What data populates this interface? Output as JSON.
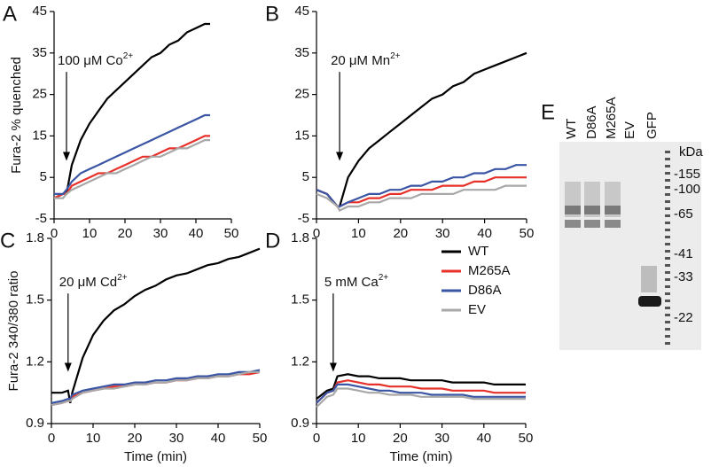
{
  "chart_data": [
    {
      "type": "line",
      "panel": "A",
      "ylabel": "Fura-2 % quenched",
      "annotation": {
        "text": "100 μM Co",
        "superscript": "2+",
        "arrow_x": 3.5
      },
      "xlim": [
        0,
        50
      ],
      "xticks": [
        0,
        10,
        20,
        30,
        40,
        50
      ],
      "ylim": [
        -5,
        45
      ],
      "yticks": [
        -5,
        5,
        15,
        25,
        35,
        45
      ],
      "x": [
        0,
        2.5,
        3.5,
        5,
        7.5,
        10,
        12.5,
        15,
        17.5,
        20,
        22.5,
        25,
        27.5,
        30,
        32.5,
        35,
        37.5,
        40,
        42.5,
        44
      ],
      "series": [
        {
          "name": "WT",
          "color": "#000000",
          "values": [
            0,
            1,
            1,
            8,
            14,
            18,
            21,
            24,
            26,
            28,
            30,
            32,
            34,
            35,
            37,
            38,
            40,
            41,
            42,
            42
          ]
        },
        {
          "name": "M265A",
          "color": "#e8302a",
          "values": [
            0,
            1,
            1,
            3,
            4,
            5,
            6,
            6,
            7,
            8,
            9,
            10,
            10,
            11,
            12,
            12,
            13,
            14,
            15,
            15
          ]
        },
        {
          "name": "D86A",
          "color": "#3a55a4",
          "values": [
            1,
            1,
            2,
            4,
            6,
            7,
            8,
            9,
            10,
            11,
            12,
            13,
            14,
            15,
            16,
            17,
            18,
            19,
            20,
            20
          ]
        },
        {
          "name": "EV",
          "color": "#a8a8a8",
          "values": [
            0,
            0,
            1,
            2,
            3,
            4,
            5,
            6,
            6,
            7,
            8,
            9,
            10,
            10,
            11,
            12,
            12,
            13,
            14,
            14
          ]
        }
      ]
    },
    {
      "type": "line",
      "panel": "B",
      "annotation": {
        "text": "20 μM Mn",
        "superscript": "2+",
        "arrow_x": 5.5
      },
      "xlim": [
        0,
        50
      ],
      "xticks": [
        0,
        10,
        20,
        30,
        40,
        50
      ],
      "ylim": [
        -5,
        45
      ],
      "yticks": [
        -5,
        5,
        15,
        25,
        35,
        45
      ],
      "x": [
        0,
        2.5,
        5,
        5.5,
        7.5,
        10,
        12.5,
        15,
        17.5,
        20,
        22.5,
        25,
        27.5,
        30,
        32.5,
        35,
        37.5,
        40,
        42.5,
        45,
        47.5,
        50
      ],
      "series": [
        {
          "name": "WT",
          "color": "#000000",
          "values": [
            2,
            1,
            -2,
            -2,
            5,
            9,
            12,
            14,
            16,
            18,
            20,
            22,
            24,
            25,
            27,
            28,
            30,
            31,
            32,
            33,
            34,
            35
          ]
        },
        {
          "name": "M265A",
          "color": "#e8302a",
          "values": [
            2,
            1,
            -2,
            -2,
            -1,
            -1,
            0,
            0,
            1,
            1,
            2,
            2,
            2,
            3,
            3,
            3,
            4,
            4,
            5,
            5,
            5,
            5
          ]
        },
        {
          "name": "D86A",
          "color": "#3a55a4",
          "values": [
            2,
            1,
            -2,
            -2,
            -1,
            0,
            1,
            1,
            2,
            2,
            3,
            3,
            4,
            4,
            5,
            5,
            6,
            6,
            7,
            7,
            8,
            8
          ]
        },
        {
          "name": "EV",
          "color": "#a8a8a8",
          "values": [
            1,
            0,
            -2,
            -3,
            -2,
            -2,
            -1,
            -1,
            0,
            0,
            0,
            1,
            1,
            1,
            1,
            2,
            2,
            2,
            2,
            3,
            3,
            3
          ]
        }
      ]
    },
    {
      "type": "line",
      "panel": "C",
      "ylabel": "Fura-2 340/380 ratio",
      "xlabel": "Time (min)",
      "annotation": {
        "text": "20 μM Cd",
        "superscript": "2+",
        "arrow_x": 4
      },
      "xlim": [
        0,
        50
      ],
      "xticks": [
        0,
        10,
        20,
        30,
        40,
        50
      ],
      "ylim": [
        0.9,
        1.8
      ],
      "yticks": [
        0.9,
        1.2,
        1.5,
        1.8
      ],
      "x": [
        0,
        2.5,
        4,
        4.5,
        5,
        7.5,
        10,
        12.5,
        15,
        17.5,
        20,
        22.5,
        25,
        27.5,
        30,
        32.5,
        35,
        37.5,
        40,
        42.5,
        45,
        47.5,
        50
      ],
      "series": [
        {
          "name": "WT",
          "color": "#000000",
          "values": [
            1.05,
            1.05,
            1.06,
            1.0,
            1.05,
            1.22,
            1.33,
            1.4,
            1.45,
            1.48,
            1.52,
            1.55,
            1.57,
            1.6,
            1.62,
            1.63,
            1.65,
            1.67,
            1.68,
            1.7,
            1.71,
            1.73,
            1.75
          ]
        },
        {
          "name": "M265A",
          "color": "#e8302a",
          "values": [
            0.99,
            1.0,
            1.01,
            1.01,
            1.03,
            1.05,
            1.06,
            1.07,
            1.08,
            1.08,
            1.09,
            1.09,
            1.1,
            1.1,
            1.11,
            1.11,
            1.12,
            1.12,
            1.13,
            1.13,
            1.14,
            1.14,
            1.15
          ]
        },
        {
          "name": "D86A",
          "color": "#3a55a4",
          "values": [
            1.0,
            1.01,
            1.02,
            1.02,
            1.04,
            1.06,
            1.07,
            1.08,
            1.09,
            1.09,
            1.1,
            1.1,
            1.11,
            1.11,
            1.12,
            1.12,
            1.13,
            1.13,
            1.14,
            1.14,
            1.15,
            1.15,
            1.16
          ]
        },
        {
          "name": "EV",
          "color": "#a8a8a8",
          "values": [
            0.99,
            1.0,
            1.01,
            1.01,
            1.02,
            1.05,
            1.06,
            1.07,
            1.07,
            1.08,
            1.09,
            1.09,
            1.1,
            1.1,
            1.11,
            1.11,
            1.12,
            1.12,
            1.13,
            1.13,
            1.14,
            1.15,
            1.15
          ]
        }
      ]
    },
    {
      "type": "line",
      "panel": "D",
      "xlabel": "Time (min)",
      "legend": "upper right",
      "annotation": {
        "text": "5 mM Ca",
        "superscript": "2+",
        "arrow_x": 4
      },
      "xlim": [
        0,
        50
      ],
      "xticks": [
        0,
        10,
        20,
        30,
        40,
        50
      ],
      "ylim": [
        0.9,
        1.8
      ],
      "yticks": [
        0.9,
        1.2,
        1.5,
        1.8
      ],
      "x": [
        0,
        2.5,
        4,
        5,
        7.5,
        10,
        12.5,
        15,
        17.5,
        20,
        22.5,
        25,
        27.5,
        30,
        32.5,
        35,
        37.5,
        40,
        42.5,
        45,
        47.5,
        50
      ],
      "series": [
        {
          "name": "WT",
          "color": "#000000",
          "values": [
            1.02,
            1.06,
            1.07,
            1.13,
            1.14,
            1.13,
            1.13,
            1.12,
            1.12,
            1.12,
            1.11,
            1.11,
            1.11,
            1.11,
            1.1,
            1.1,
            1.1,
            1.1,
            1.09,
            1.09,
            1.09,
            1.09
          ]
        },
        {
          "name": "M265A",
          "color": "#e8302a",
          "values": [
            1.0,
            1.05,
            1.06,
            1.1,
            1.11,
            1.1,
            1.09,
            1.09,
            1.08,
            1.08,
            1.08,
            1.07,
            1.07,
            1.07,
            1.06,
            1.06,
            1.06,
            1.06,
            1.05,
            1.05,
            1.05,
            1.05
          ]
        },
        {
          "name": "D86A",
          "color": "#3a55a4",
          "values": [
            1.0,
            1.05,
            1.06,
            1.09,
            1.09,
            1.08,
            1.07,
            1.06,
            1.06,
            1.05,
            1.05,
            1.05,
            1.04,
            1.04,
            1.04,
            1.04,
            1.03,
            1.03,
            1.03,
            1.03,
            1.03,
            1.03
          ]
        },
        {
          "name": "EV",
          "color": "#a8a8a8",
          "values": [
            0.98,
            1.03,
            1.04,
            1.07,
            1.07,
            1.06,
            1.05,
            1.05,
            1.04,
            1.04,
            1.04,
            1.03,
            1.03,
            1.03,
            1.03,
            1.03,
            1.02,
            1.02,
            1.02,
            1.02,
            1.02,
            1.02
          ]
        }
      ]
    }
  ],
  "gel": {
    "panel": "E",
    "lanes": [
      "WT",
      "D86A",
      "M265A",
      "EV",
      "GFP"
    ],
    "unit": "kDa",
    "markers": [
      "-155",
      "-100",
      "-65",
      "-41",
      "-33",
      "-22"
    ]
  }
}
